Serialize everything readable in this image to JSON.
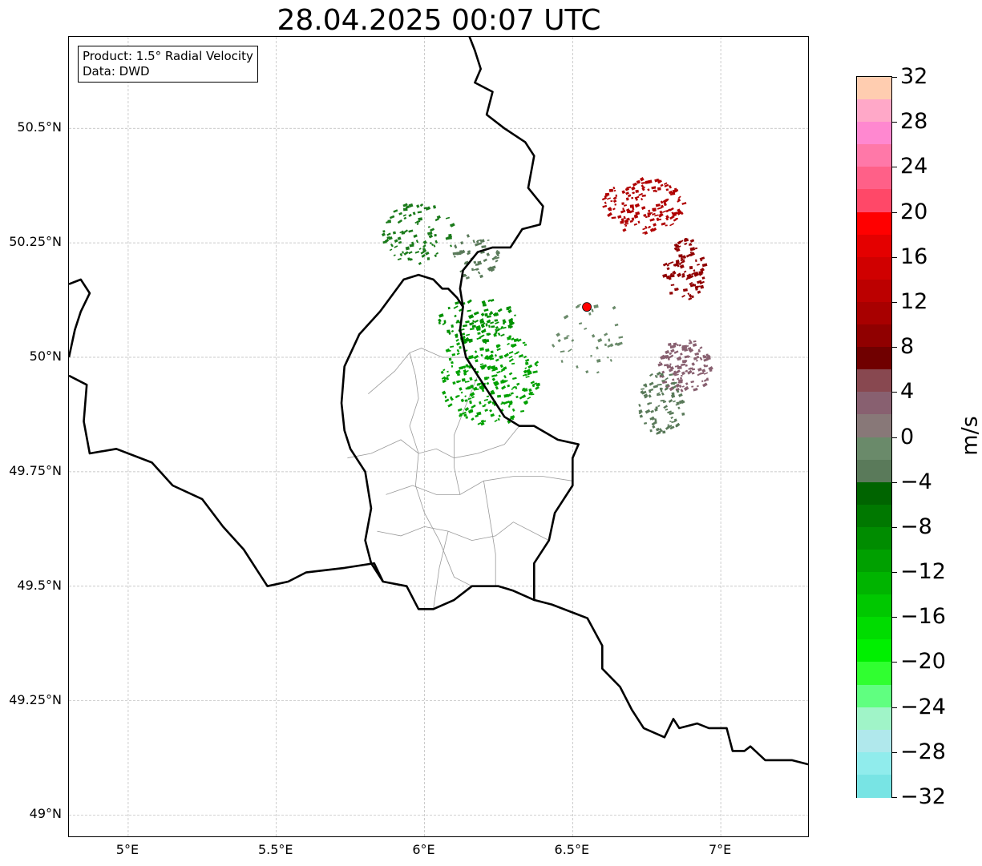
{
  "title": "28.04.2025 00:07 UTC",
  "info": {
    "product": "Product: 1.5° Radial Velocity",
    "source": "Data: DWD"
  },
  "axes": {
    "lon_min": 4.8,
    "lon_max": 7.3,
    "lat_min": 48.95,
    "lat_max": 50.7,
    "lon_ticks": [
      {
        "value": 5.0,
        "label": "5°E"
      },
      {
        "value": 5.5,
        "label": "5.5°E"
      },
      {
        "value": 6.0,
        "label": "6°E"
      },
      {
        "value": 6.5,
        "label": "6.5°E"
      },
      {
        "value": 7.0,
        "label": "7°E"
      }
    ],
    "lat_ticks": [
      {
        "value": 50.5,
        "label": "50.5°N"
      },
      {
        "value": 50.25,
        "label": "50.25°N"
      },
      {
        "value": 50.0,
        "label": "50°N"
      },
      {
        "value": 49.75,
        "label": "49.75°N"
      },
      {
        "value": 49.5,
        "label": "49.5°N"
      },
      {
        "value": 49.25,
        "label": "49.25°N"
      },
      {
        "value": 49.0,
        "label": "49°N"
      }
    ],
    "grid": true
  },
  "radar_site": {
    "lon": 6.548,
    "lat": 50.11,
    "color": "#ff0000"
  },
  "colorbar": {
    "unit": "m/s",
    "min": -32,
    "max": 32,
    "tick_labels": [
      "32",
      "28",
      "24",
      "20",
      "16",
      "12",
      "8",
      "4",
      "0",
      "−4",
      "−8",
      "−12",
      "−16",
      "−20",
      "−24",
      "−28",
      "−32"
    ],
    "colors_top_to_bottom": [
      "#ffcdb0",
      "#ffa8c8",
      "#ff88d0",
      "#ff78a8",
      "#ff6088",
      "#ff4868",
      "#ff0000",
      "#e40000",
      "#d00000",
      "#bc0000",
      "#a80000",
      "#900000",
      "#700000",
      "#884850",
      "#886070",
      "#887878",
      "#6a8a6a",
      "#5a7a5a",
      "#006400",
      "#007800",
      "#008c00",
      "#00a000",
      "#00b400",
      "#00c800",
      "#00dc00",
      "#00f000",
      "#30ff30",
      "#60ff80",
      "#a0f4c8",
      "#b0e8ec",
      "#90ecec",
      "#78e4e4"
    ]
  },
  "echo_clusters": [
    {
      "lon": 5.98,
      "lat": 50.27,
      "rlon": 0.12,
      "rlat": 0.07,
      "n": 90,
      "color": "#1a7a1a"
    },
    {
      "lon": 6.17,
      "lat": 50.22,
      "rlon": 0.08,
      "rlat": 0.05,
      "n": 50,
      "color": "#5a7a5a"
    },
    {
      "lon": 6.22,
      "lat": 49.96,
      "rlon": 0.17,
      "rlat": 0.11,
      "n": 260,
      "color": "#00a000"
    },
    {
      "lon": 6.18,
      "lat": 50.08,
      "rlon": 0.13,
      "rlat": 0.05,
      "n": 90,
      "color": "#009000"
    },
    {
      "lon": 6.74,
      "lat": 50.33,
      "rlon": 0.14,
      "rlat": 0.06,
      "n": 150,
      "color": "#b00000"
    },
    {
      "lon": 6.88,
      "lat": 50.19,
      "rlon": 0.07,
      "rlat": 0.07,
      "n": 90,
      "color": "#900000"
    },
    {
      "lon": 6.88,
      "lat": 49.98,
      "rlon": 0.09,
      "rlat": 0.06,
      "n": 120,
      "color": "#886070"
    },
    {
      "lon": 6.8,
      "lat": 49.9,
      "rlon": 0.08,
      "rlat": 0.07,
      "n": 90,
      "color": "#5a7a5a"
    },
    {
      "lon": 6.55,
      "lat": 50.05,
      "rlon": 0.12,
      "rlat": 0.09,
      "n": 40,
      "color": "#6a8a6a"
    }
  ],
  "borders": {
    "countries": [
      [
        [
          6.14,
          50.72
        ],
        [
          6.17,
          50.67
        ],
        [
          6.19,
          50.63
        ],
        [
          6.17,
          50.6
        ],
        [
          6.23,
          50.58
        ],
        [
          6.21,
          50.53
        ],
        [
          6.27,
          50.5
        ],
        [
          6.34,
          50.47
        ],
        [
          6.37,
          50.44
        ],
        [
          6.35,
          50.37
        ],
        [
          6.4,
          50.33
        ],
        [
          6.39,
          50.29
        ],
        [
          6.33,
          50.28
        ],
        [
          6.29,
          50.24
        ],
        [
          6.23,
          50.24
        ],
        [
          6.18,
          50.23
        ],
        [
          6.13,
          50.19
        ],
        [
          6.12,
          50.15
        ],
        [
          6.13,
          50.11
        ],
        [
          6.12,
          50.06
        ],
        [
          6.14,
          50.0
        ],
        [
          6.18,
          49.96
        ],
        [
          6.22,
          49.92
        ],
        [
          6.27,
          49.87
        ],
        [
          6.32,
          49.85
        ],
        [
          6.37,
          49.85
        ],
        [
          6.45,
          49.82
        ],
        [
          6.52,
          49.81
        ],
        [
          6.5,
          49.78
        ],
        [
          6.5,
          49.72
        ],
        [
          6.44,
          49.66
        ],
        [
          6.42,
          49.6
        ],
        [
          6.37,
          49.55
        ],
        [
          6.37,
          49.47
        ],
        [
          6.3,
          49.49
        ],
        [
          6.25,
          49.5
        ],
        [
          6.16,
          49.5
        ],
        [
          6.1,
          49.47
        ],
        [
          6.03,
          49.45
        ],
        [
          5.98,
          49.45
        ],
        [
          5.94,
          49.5
        ],
        [
          5.86,
          49.51
        ],
        [
          5.83,
          49.55
        ],
        [
          5.73,
          49.54
        ],
        [
          5.6,
          49.53
        ],
        [
          5.54,
          49.51
        ],
        [
          5.47,
          49.5
        ],
        [
          5.44,
          49.53
        ],
        [
          5.39,
          49.58
        ],
        [
          5.32,
          49.63
        ],
        [
          5.25,
          49.69
        ],
        [
          5.15,
          49.72
        ],
        [
          5.08,
          49.77
        ],
        [
          4.96,
          49.8
        ],
        [
          4.87,
          49.79
        ],
        [
          4.85,
          49.86
        ],
        [
          4.86,
          49.94
        ],
        [
          4.8,
          49.96
        ]
      ],
      [
        [
          6.37,
          49.47
        ],
        [
          6.43,
          49.46
        ],
        [
          6.51,
          49.44
        ],
        [
          6.55,
          49.43
        ],
        [
          6.6,
          49.37
        ],
        [
          6.6,
          49.32
        ],
        [
          6.66,
          49.28
        ],
        [
          6.7,
          49.23
        ],
        [
          6.74,
          49.19
        ],
        [
          6.81,
          49.17
        ],
        [
          6.84,
          49.21
        ],
        [
          6.86,
          49.19
        ],
        [
          6.92,
          49.2
        ],
        [
          6.96,
          49.19
        ],
        [
          7.02,
          49.19
        ],
        [
          7.04,
          49.14
        ],
        [
          7.08,
          49.14
        ],
        [
          7.1,
          49.15
        ],
        [
          7.15,
          49.12
        ],
        [
          7.2,
          49.12
        ],
        [
          7.24,
          49.12
        ],
        [
          7.3,
          49.11
        ]
      ],
      [
        [
          5.86,
          49.51
        ],
        [
          5.82,
          49.55
        ],
        [
          5.8,
          49.6
        ],
        [
          5.82,
          49.67
        ],
        [
          5.8,
          49.75
        ],
        [
          5.75,
          49.8
        ],
        [
          5.73,
          49.84
        ],
        [
          5.72,
          49.9
        ],
        [
          5.73,
          49.98
        ],
        [
          5.78,
          50.05
        ],
        [
          5.85,
          50.1
        ],
        [
          5.93,
          50.17
        ],
        [
          5.98,
          50.18
        ],
        [
          6.03,
          50.17
        ],
        [
          6.06,
          50.15
        ],
        [
          6.08,
          50.15
        ],
        [
          6.11,
          50.13
        ],
        [
          6.13,
          50.11
        ]
      ],
      [
        [
          4.8,
          50.16
        ],
        [
          4.84,
          50.17
        ],
        [
          4.87,
          50.14
        ],
        [
          4.84,
          50.1
        ],
        [
          4.82,
          50.06
        ],
        [
          4.8,
          50.0
        ]
      ]
    ],
    "districts": [
      [
        [
          5.81,
          49.92
        ],
        [
          5.9,
          49.97
        ],
        [
          5.95,
          50.01
        ],
        [
          5.99,
          50.02
        ],
        [
          6.06,
          50.0
        ],
        [
          6.14,
          50.0
        ]
      ],
      [
        [
          5.95,
          50.01
        ],
        [
          5.97,
          49.96
        ],
        [
          5.98,
          49.91
        ],
        [
          5.95,
          49.85
        ],
        [
          5.98,
          49.79
        ],
        [
          5.97,
          49.72
        ],
        [
          6.0,
          49.66
        ],
        [
          6.05,
          49.6
        ],
        [
          6.1,
          49.52
        ],
        [
          6.16,
          49.5
        ]
      ],
      [
        [
          5.74,
          49.78
        ],
        [
          5.82,
          49.79
        ],
        [
          5.92,
          49.82
        ],
        [
          5.98,
          49.79
        ],
        [
          6.04,
          49.8
        ],
        [
          6.1,
          49.78
        ],
        [
          6.18,
          49.79
        ],
        [
          6.27,
          49.81
        ],
        [
          6.32,
          49.85
        ]
      ],
      [
        [
          5.87,
          49.7
        ],
        [
          5.96,
          49.72
        ],
        [
          6.04,
          49.7
        ],
        [
          6.12,
          49.7
        ],
        [
          6.2,
          49.73
        ],
        [
          6.3,
          49.74
        ],
        [
          6.4,
          49.74
        ],
        [
          6.5,
          49.73
        ]
      ],
      [
        [
          5.84,
          49.62
        ],
        [
          5.92,
          49.61
        ],
        [
          6.0,
          49.63
        ],
        [
          6.08,
          49.62
        ],
        [
          6.16,
          49.6
        ],
        [
          6.24,
          49.61
        ],
        [
          6.3,
          49.64
        ],
        [
          6.42,
          49.6
        ]
      ],
      [
        [
          6.08,
          49.62
        ],
        [
          6.05,
          49.54
        ],
        [
          6.03,
          49.45
        ]
      ],
      [
        [
          6.2,
          49.73
        ],
        [
          6.22,
          49.65
        ],
        [
          6.24,
          49.57
        ],
        [
          6.24,
          49.5
        ]
      ],
      [
        [
          6.12,
          49.7
        ],
        [
          6.1,
          49.76
        ],
        [
          6.1,
          49.83
        ],
        [
          6.13,
          49.88
        ],
        [
          6.18,
          49.96
        ]
      ]
    ]
  }
}
